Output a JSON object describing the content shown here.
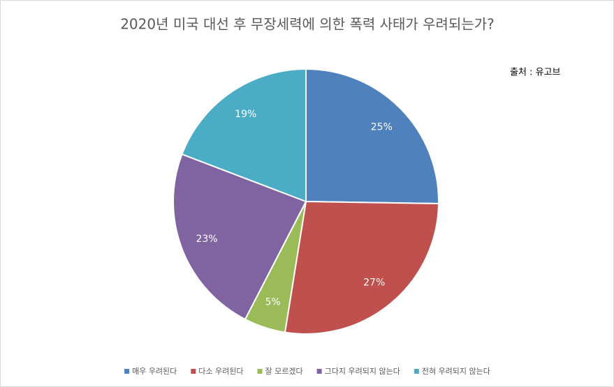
{
  "chart_data": {
    "type": "pie",
    "title": "2020년 미국 대선 후 무장세력에 의한 폭력 사태가 우려되는가?",
    "annotation": "출처 : 유고브",
    "categories": [
      "매우 우려된다",
      "다소 우려된다",
      "잘 모르겠다",
      "그다지 우려되지 않는다",
      "전혀 우려되지 않는다"
    ],
    "values": [
      25,
      27,
      5,
      23,
      19
    ],
    "value_labels": [
      "25%",
      "27%",
      "5%",
      "23%",
      "19%"
    ],
    "colors": [
      "#4f81bd",
      "#c0504d",
      "#9bbb59",
      "#8064a2",
      "#4bacc6"
    ],
    "legend": "bottom"
  }
}
